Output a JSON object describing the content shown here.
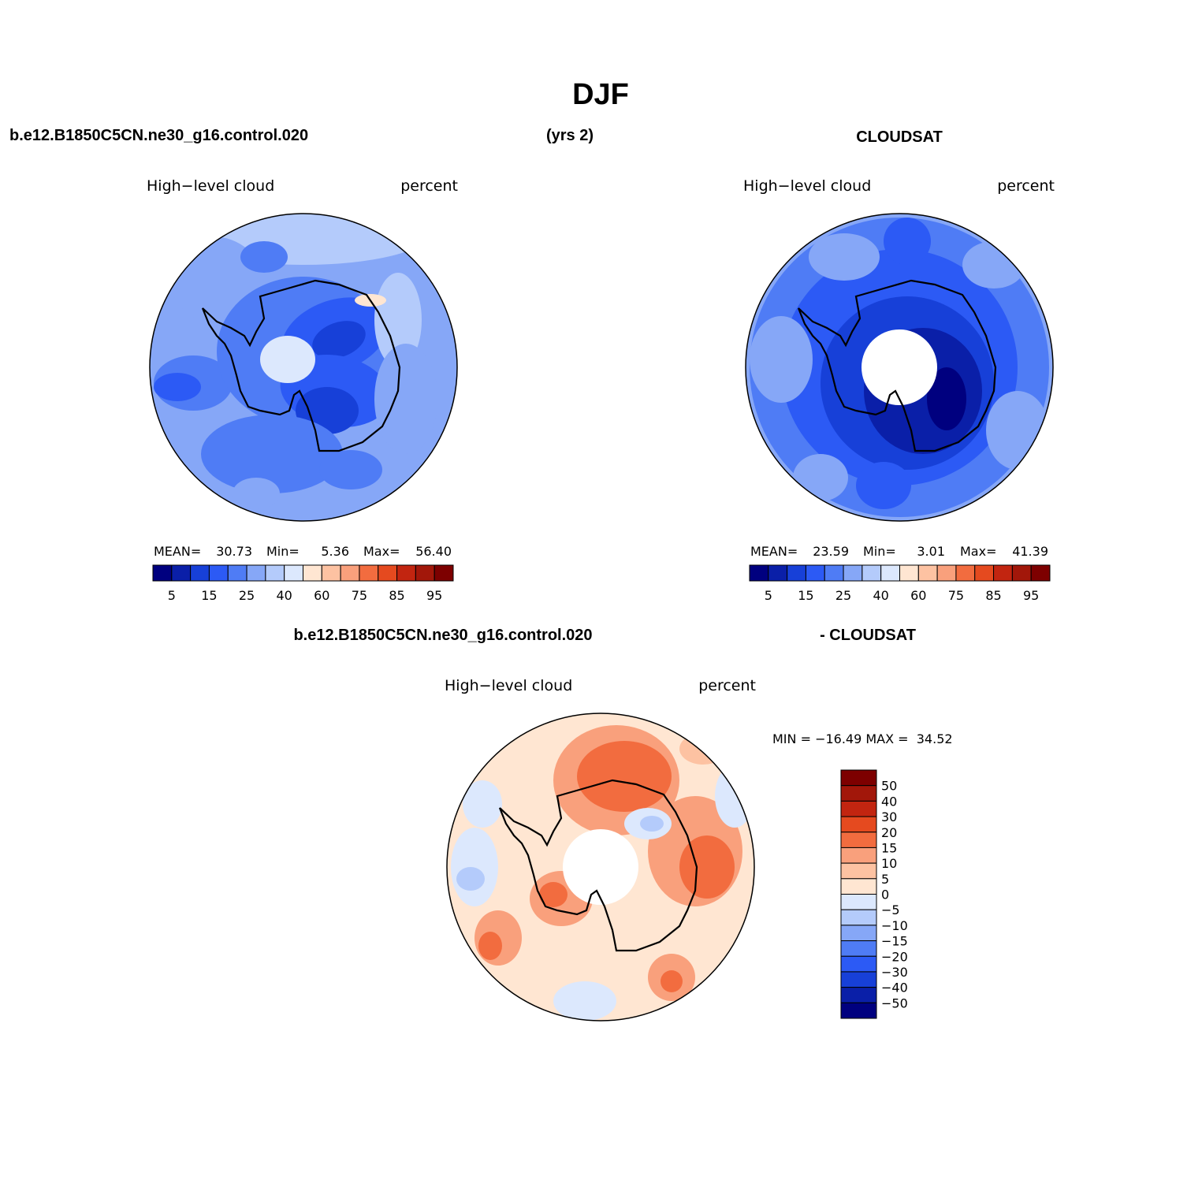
{
  "figure": {
    "title": "DJF",
    "case_name": "b.e12.B1850C5CN.ne30_g16.control.020",
    "years": "(yrs 2)",
    "obs_name": "CLOUDSAT",
    "diff_case_name": "b.e12.B1850C5CN.ne30_g16.control.020",
    "diff_obs_name": "- CLOUDSAT"
  },
  "colors": {
    "abs_palette": [
      "#00007f",
      "#0a1fa8",
      "#1740d8",
      "#2c5af5",
      "#4f7cf5",
      "#86a7f7",
      "#b4cbfb",
      "#dce8fd",
      "#ffe6d2",
      "#fdc2a2",
      "#f9a07c",
      "#f26c3f",
      "#e54a1f",
      "#c22510",
      "#a2170a",
      "#7d0000"
    ],
    "diff_palette": [
      "#00007f",
      "#0a1fa8",
      "#1740d8",
      "#2c5af5",
      "#4f7cf5",
      "#86a7f7",
      "#b4cbfb",
      "#dce8fd",
      "#ffe6d2",
      "#fdc2a2",
      "#f9a07c",
      "#f26c3f",
      "#e54a1f",
      "#c22510",
      "#a2170a",
      "#7d0000"
    ],
    "coast": "#000000"
  },
  "chart_data": [
    {
      "type": "heatmap",
      "projection": "south-polar-stereographic",
      "left_label": "High−level cloud",
      "right_label": "percent",
      "stats": {
        "mean_label": "MEAN=",
        "mean": "30.73",
        "min_label": "Min=",
        "min": "5.36",
        "max_label": "Max=",
        "max": "56.40"
      },
      "colorbar_ticks": [
        "5",
        "15",
        "25",
        "40",
        "60",
        "75",
        "85",
        "95"
      ],
      "levels": [
        5,
        10,
        15,
        20,
        25,
        30,
        40,
        50,
        60,
        70,
        75,
        80,
        85,
        90,
        95
      ],
      "field_range": [
        5.36,
        56.4
      ],
      "pole_missing": false
    },
    {
      "type": "heatmap",
      "projection": "south-polar-stereographic",
      "left_label": "High−level cloud",
      "right_label": "percent",
      "stats": {
        "mean_label": "MEAN=",
        "mean": "23.59",
        "min_label": "Min=",
        "min": "3.01",
        "max_label": "Max=",
        "max": "41.39"
      },
      "colorbar_ticks": [
        "5",
        "15",
        "25",
        "40",
        "60",
        "75",
        "85",
        "95"
      ],
      "levels": [
        5,
        10,
        15,
        20,
        25,
        30,
        40,
        50,
        60,
        70,
        75,
        80,
        85,
        90,
        95
      ],
      "field_range": [
        3.01,
        41.39
      ],
      "pole_missing": true
    },
    {
      "type": "heatmap",
      "projection": "south-polar-stereographic",
      "left_label": "High−level cloud",
      "right_label": "percent",
      "stats_text": "MIN = −16.49 MAX =  34.52",
      "colorbar_ticks": [
        "50",
        "40",
        "30",
        "20",
        "15",
        "10",
        "5",
        "0",
        "−5",
        "−10",
        "−15",
        "−20",
        "−30",
        "−40",
        "−50"
      ],
      "levels": [
        -50,
        -40,
        -30,
        -20,
        -15,
        -10,
        -5,
        0,
        5,
        10,
        15,
        20,
        30,
        40,
        50
      ],
      "field_range": [
        -16.49,
        34.52
      ],
      "pole_missing": true
    }
  ]
}
